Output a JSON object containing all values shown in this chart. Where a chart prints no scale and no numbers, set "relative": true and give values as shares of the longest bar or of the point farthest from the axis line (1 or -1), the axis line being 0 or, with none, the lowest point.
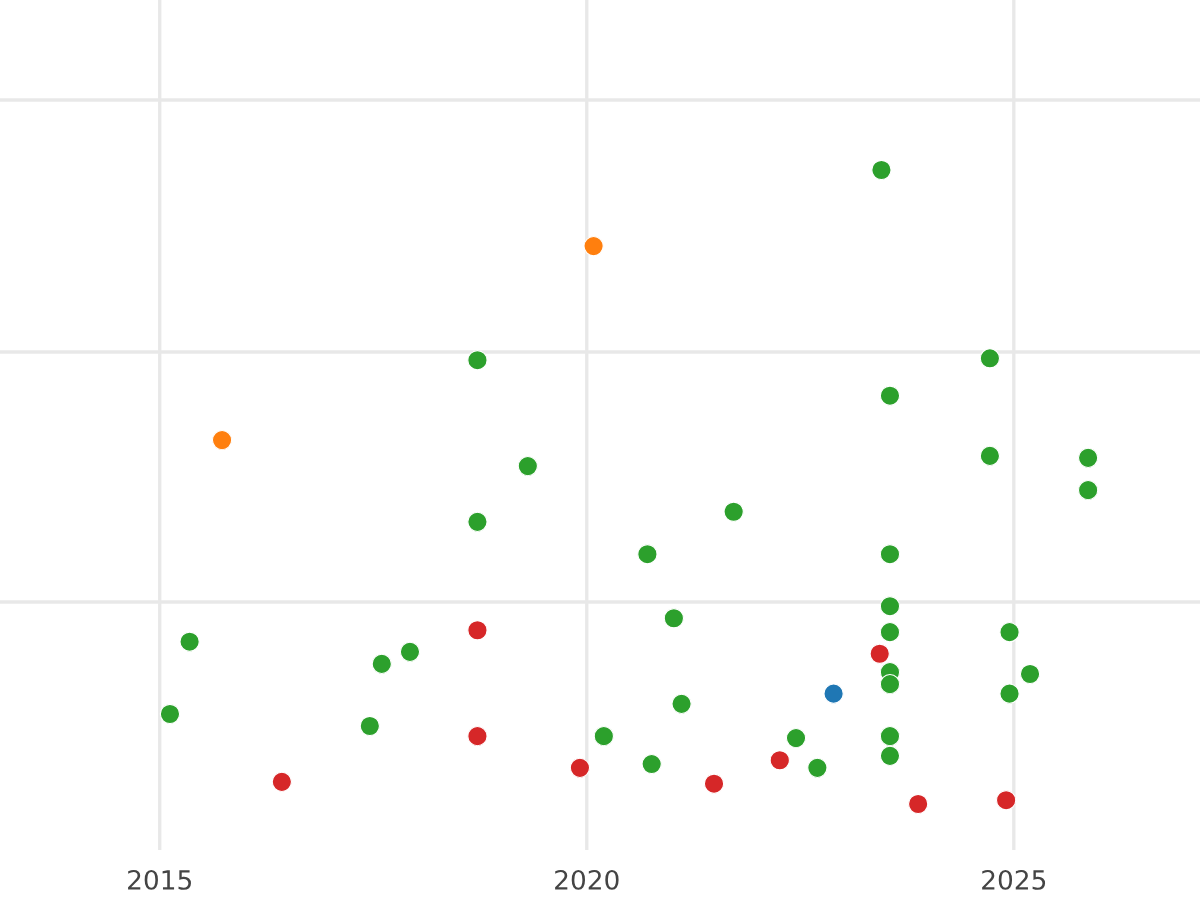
{
  "chart_data": {
    "type": "scatter",
    "relative": true,
    "xlim": [
      2013.13,
      2027.18
    ],
    "xticks": [
      2015,
      2020,
      2025
    ],
    "grid": true,
    "marker": "circle",
    "series": [
      {
        "color": "#2ca02c",
        "x": [
          2015.35,
          2015.12,
          2017.6,
          2017.93,
          2017.46,
          2018.72,
          2019.31,
          2018.72,
          2020.71,
          2021.02,
          2021.11,
          2020.2,
          2020.76,
          2021.72,
          2022.45,
          2022.7,
          2023.45,
          2023.55,
          2023.55,
          2023.55,
          2023.55,
          2023.55,
          2023.55,
          2023.55,
          2023.55,
          2024.72,
          2024.72,
          2024.95,
          2025.19,
          2024.95,
          2025.87,
          2025.87
        ],
        "values": [
          0.256,
          0.142,
          0.221,
          0.24,
          0.123,
          0.7,
          0.533,
          0.445,
          0.394,
          0.293,
          0.158,
          0.107,
          0.063,
          0.461,
          0.104,
          0.057,
          1,
          0.644,
          0.394,
          0.312,
          0.271,
          0.208,
          0.189,
          0.107,
          0.076,
          0.703,
          0.549,
          0.271,
          0.205,
          0.174,
          0.546,
          0.495
        ]
      },
      {
        "color": "#ff7f0e",
        "x": [
          2015.73,
          2020.08
        ],
        "values": [
          0.574,
          0.88
        ]
      },
      {
        "color": "#d62728",
        "x": [
          2016.43,
          2018.72,
          2018.72,
          2019.92,
          2021.49,
          2022.26,
          2023.43,
          2023.88,
          2024.91
        ],
        "values": [
          0.035,
          0.274,
          0.107,
          0.057,
          0.032,
          0.069,
          0.237,
          0,
          0.006
        ]
      },
      {
        "color": "#1f77b4",
        "x": [
          2022.89
        ],
        "values": [
          0.174
        ]
      }
    ]
  }
}
